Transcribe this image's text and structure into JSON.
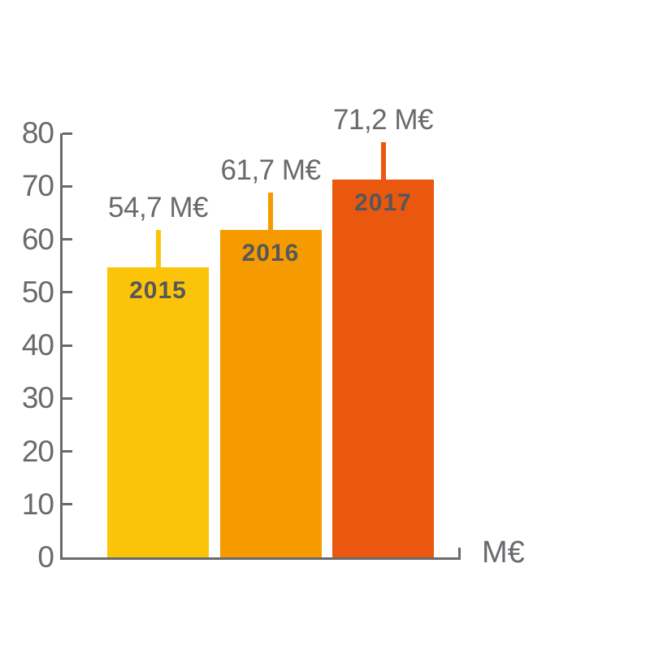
{
  "chart_data": {
    "type": "bar",
    "title": "",
    "categories": [
      "2015",
      "2016",
      "2017"
    ],
    "values": [
      54.7,
      61.7,
      71.2
    ],
    "value_labels": [
      "54,7 M€",
      "61,7 M€",
      "71,2 M€"
    ],
    "unit": "M€",
    "xlabel": "M€",
    "ylabel": "",
    "ylim": [
      0,
      80
    ],
    "yticks": [
      "0",
      "10",
      "20",
      "30",
      "40",
      "50",
      "60",
      "70",
      "80"
    ],
    "grid": false,
    "legend": false,
    "bar_colors": [
      "#fcc408",
      "#f59b00",
      "#e9580e"
    ],
    "axis_color": "#686a6d",
    "value_label_color": "#686a6d",
    "category_label_color": "#55575b"
  }
}
